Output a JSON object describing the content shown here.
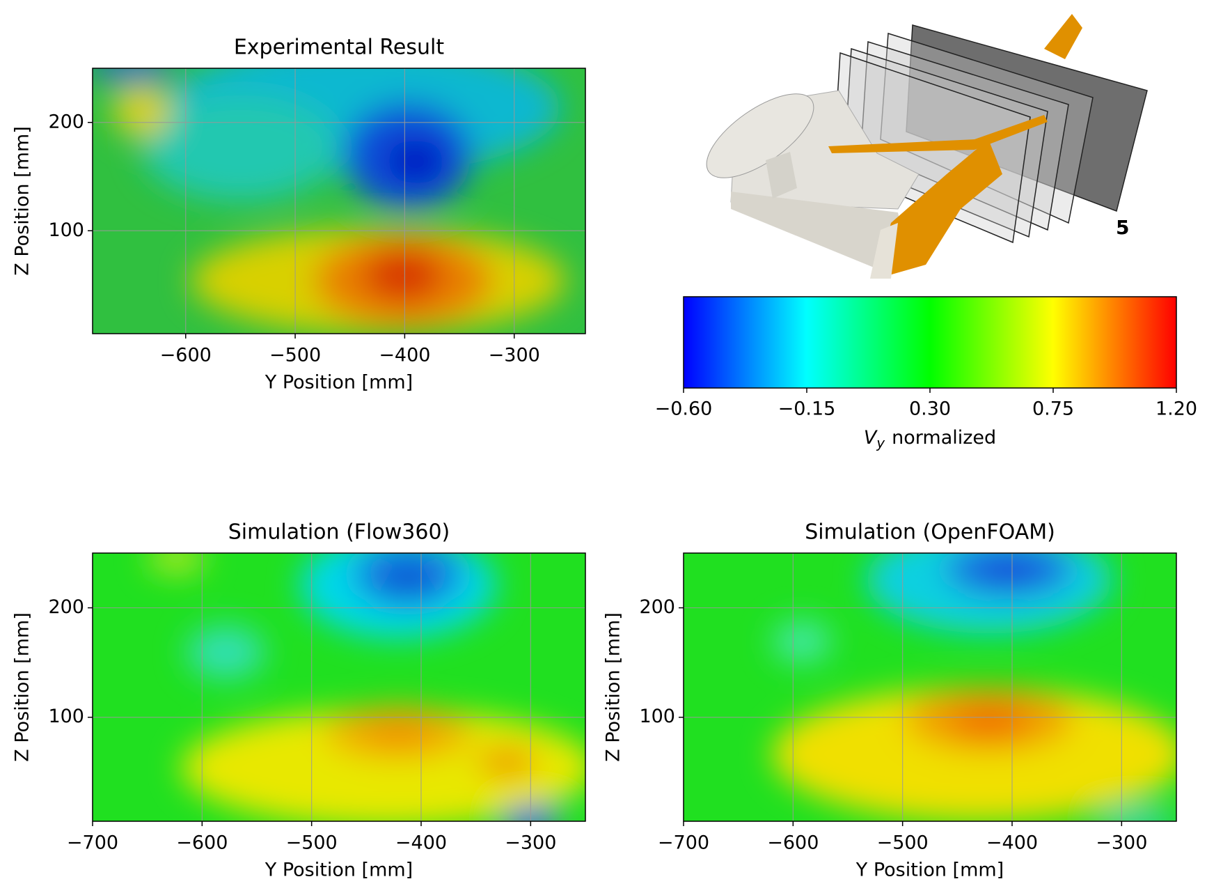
{
  "chart_data": [
    {
      "type": "contour",
      "title": "Experimental Result",
      "xlabel": "Y Position [mm]",
      "ylabel": "Z Position [mm]",
      "xlim": [
        -685,
        -235
      ],
      "ylim": [
        5,
        250
      ],
      "xticks": [
        {
          "value": -600,
          "label": "−600"
        },
        {
          "value": -500,
          "label": "−500"
        },
        {
          "value": -400,
          "label": "−400"
        },
        {
          "value": -300,
          "label": "−300"
        }
      ],
      "yticks": [
        100,
        200
      ],
      "grid": true
    },
    {
      "type": "contour",
      "title": "Simulation (Flow360)",
      "xlabel": "Y Position [mm]",
      "ylabel": "Z Position [mm]",
      "xlim": [
        -700,
        -250
      ],
      "ylim": [
        5,
        250
      ],
      "xticks": [
        {
          "value": -700,
          "label": "−700"
        },
        {
          "value": -600,
          "label": "−600"
        },
        {
          "value": -500,
          "label": "−500"
        },
        {
          "value": -400,
          "label": "−400"
        },
        {
          "value": -300,
          "label": "−300"
        }
      ],
      "yticks": [
        100,
        200
      ],
      "grid": true
    },
    {
      "type": "contour",
      "title": "Simulation (OpenFOAM)",
      "xlabel": "Y Position [mm]",
      "ylabel": "Z Position [mm]",
      "xlim": [
        -700,
        -250
      ],
      "ylim": [
        5,
        250
      ],
      "xticks": [
        {
          "value": -700,
          "label": "−700"
        },
        {
          "value": -600,
          "label": "−600"
        },
        {
          "value": -500,
          "label": "−500"
        },
        {
          "value": -400,
          "label": "−400"
        },
        {
          "value": -300,
          "label": "−300"
        }
      ],
      "yticks": [
        100,
        200
      ],
      "grid": true
    },
    {
      "type": "colorbar",
      "label_symbol": "V",
      "label_subscript": "y",
      "label_text": "normalized",
      "xlim": [
        -0.6,
        1.2
      ],
      "xticks": [
        {
          "value": -0.6,
          "label": "−0.60"
        },
        {
          "value": -0.15,
          "label": "−0.15"
        },
        {
          "value": 0.3,
          "label": "0.30"
        },
        {
          "value": 0.75,
          "label": "0.75"
        },
        {
          "value": 1.2,
          "label": "1.20"
        }
      ],
      "colors": [
        "#0000ff",
        "#00ffff",
        "#00ff00",
        "#ffff00",
        "#ff0000"
      ]
    }
  ],
  "figure": {
    "annotation": "5"
  }
}
